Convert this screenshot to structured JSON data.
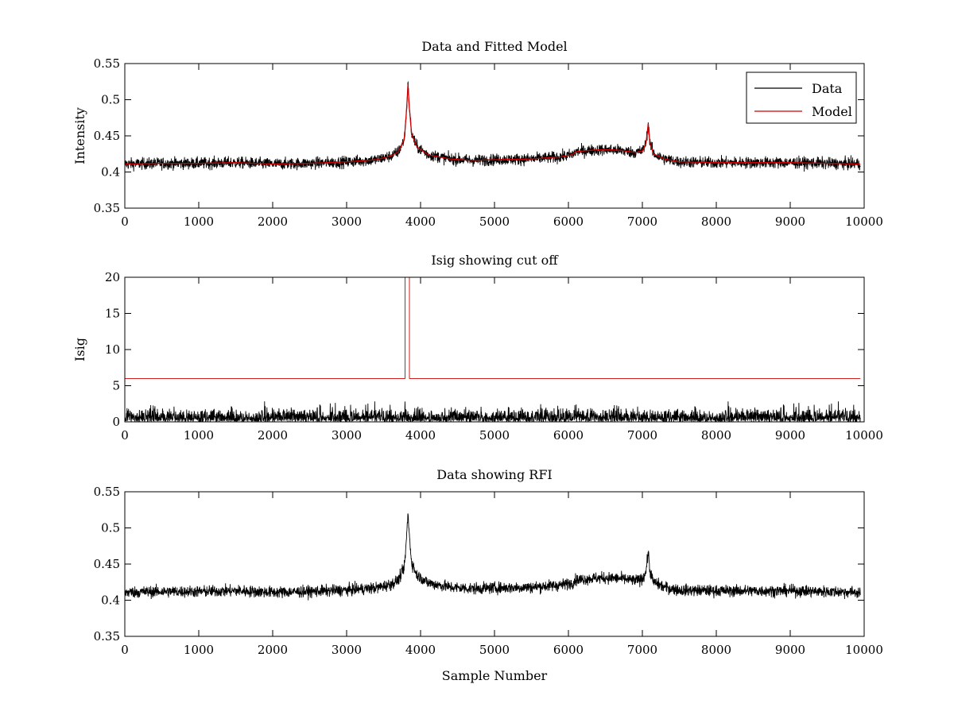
{
  "chart_data": [
    {
      "type": "line",
      "title": "Data and Fitted Model",
      "xlabel": "",
      "ylabel": "Intensity",
      "xlim": [
        0,
        10000
      ],
      "ylim": [
        0.35,
        0.55
      ],
      "xticks": [
        "0",
        "1000",
        "2000",
        "3000",
        "4000",
        "5000",
        "6000",
        "7000",
        "8000",
        "9000",
        "10000"
      ],
      "yticks": [
        "0.35",
        "0.4",
        "0.45",
        "0.5",
        "0.55"
      ],
      "legend": {
        "position": "top-right",
        "entries": [
          "Data",
          "Model"
        ]
      },
      "series": [
        {
          "name": "Data",
          "color": "#000000",
          "style": "noisy",
          "noise_amplitude": 0.005,
          "x_range": [
            0,
            9950
          ],
          "x": [
            0,
            500,
            1000,
            1500,
            2000,
            2500,
            3000,
            3400,
            3600,
            3700,
            3780,
            3810,
            3830,
            3850,
            3880,
            3950,
            4100,
            4400,
            4700,
            5000,
            5500,
            5900,
            6050,
            6100,
            6300,
            6500,
            6700,
            6900,
            7000,
            7050,
            7080,
            7100,
            7150,
            7300,
            7500,
            8000,
            8500,
            9000,
            9500,
            9950
          ],
          "y": [
            0.411,
            0.412,
            0.412,
            0.413,
            0.411,
            0.412,
            0.414,
            0.417,
            0.422,
            0.428,
            0.445,
            0.485,
            0.521,
            0.487,
            0.452,
            0.435,
            0.424,
            0.418,
            0.416,
            0.417,
            0.418,
            0.421,
            0.424,
            0.428,
            0.43,
            0.431,
            0.43,
            0.427,
            0.429,
            0.44,
            0.467,
            0.442,
            0.425,
            0.418,
            0.414,
            0.413,
            0.413,
            0.413,
            0.412,
            0.411
          ]
        },
        {
          "name": "Model",
          "color": "#cc0000",
          "style": "smooth",
          "x_range": [
            0,
            9950
          ],
          "x": [
            0,
            500,
            1000,
            1500,
            2000,
            2500,
            3000,
            3400,
            3600,
            3700,
            3780,
            3810,
            3830,
            3850,
            3880,
            3950,
            4100,
            4400,
            4700,
            5000,
            5500,
            5900,
            6050,
            6100,
            6300,
            6500,
            6700,
            6900,
            7000,
            7050,
            7080,
            7100,
            7150,
            7300,
            7500,
            8000,
            8500,
            9000,
            9500,
            9950
          ],
          "y": [
            0.411,
            0.412,
            0.412,
            0.413,
            0.411,
            0.412,
            0.414,
            0.417,
            0.422,
            0.428,
            0.445,
            0.485,
            0.521,
            0.487,
            0.452,
            0.435,
            0.424,
            0.418,
            0.416,
            0.417,
            0.418,
            0.421,
            0.424,
            0.428,
            0.43,
            0.431,
            0.43,
            0.427,
            0.429,
            0.44,
            0.467,
            0.442,
            0.425,
            0.418,
            0.414,
            0.413,
            0.413,
            0.413,
            0.412,
            0.411
          ]
        }
      ]
    },
    {
      "type": "line",
      "title": "Isig showing cut off",
      "xlabel": "",
      "ylabel": "Isig",
      "xlim": [
        0,
        10000
      ],
      "ylim": [
        0,
        20
      ],
      "xticks": [
        "0",
        "1000",
        "2000",
        "3000",
        "4000",
        "5000",
        "6000",
        "7000",
        "8000",
        "9000",
        "10000"
      ],
      "yticks": [
        "0",
        "5",
        "10",
        "15",
        "20"
      ],
      "series": [
        {
          "name": "Isig",
          "color": "#000000",
          "style": "abs-noise",
          "noise_amplitude": 1.2,
          "x_range": [
            0,
            9950
          ],
          "x": [
            0,
            9950
          ],
          "y": [
            0,
            0
          ]
        },
        {
          "name": "cut off",
          "color": "#cc0000",
          "style": "step",
          "x": [
            0,
            3790,
            3790,
            3850,
            3850,
            9950
          ],
          "y": [
            6,
            6,
            20,
            20,
            6,
            6
          ]
        }
      ]
    },
    {
      "type": "line",
      "title": "Data showing RFI",
      "xlabel": "Sample Number",
      "ylabel": "",
      "xlim": [
        0,
        10000
      ],
      "ylim": [
        0.35,
        0.55
      ],
      "xticks": [
        "0",
        "1000",
        "2000",
        "3000",
        "4000",
        "5000",
        "6000",
        "7000",
        "8000",
        "9000",
        "10000"
      ],
      "yticks": [
        "0.35",
        "0.4",
        "0.45",
        "0.5",
        "0.55"
      ],
      "series": [
        {
          "name": "Data",
          "color": "#000000",
          "style": "noisy",
          "noise_amplitude": 0.005,
          "x_range": [
            0,
            9950
          ],
          "x": [
            0,
            500,
            1000,
            1500,
            2000,
            2500,
            3000,
            3400,
            3600,
            3700,
            3780,
            3810,
            3830,
            3850,
            3880,
            3950,
            4100,
            4400,
            4700,
            5000,
            5500,
            5900,
            6050,
            6100,
            6300,
            6500,
            6700,
            6900,
            7000,
            7050,
            7080,
            7100,
            7150,
            7300,
            7500,
            8000,
            8500,
            9000,
            9500,
            9950
          ],
          "y": [
            0.411,
            0.412,
            0.412,
            0.413,
            0.411,
            0.412,
            0.414,
            0.417,
            0.422,
            0.428,
            0.445,
            0.485,
            0.521,
            0.487,
            0.452,
            0.435,
            0.424,
            0.418,
            0.416,
            0.417,
            0.418,
            0.421,
            0.424,
            0.428,
            0.43,
            0.431,
            0.43,
            0.427,
            0.429,
            0.44,
            0.467,
            0.442,
            0.425,
            0.418,
            0.414,
            0.413,
            0.413,
            0.413,
            0.412,
            0.411
          ]
        }
      ]
    }
  ]
}
